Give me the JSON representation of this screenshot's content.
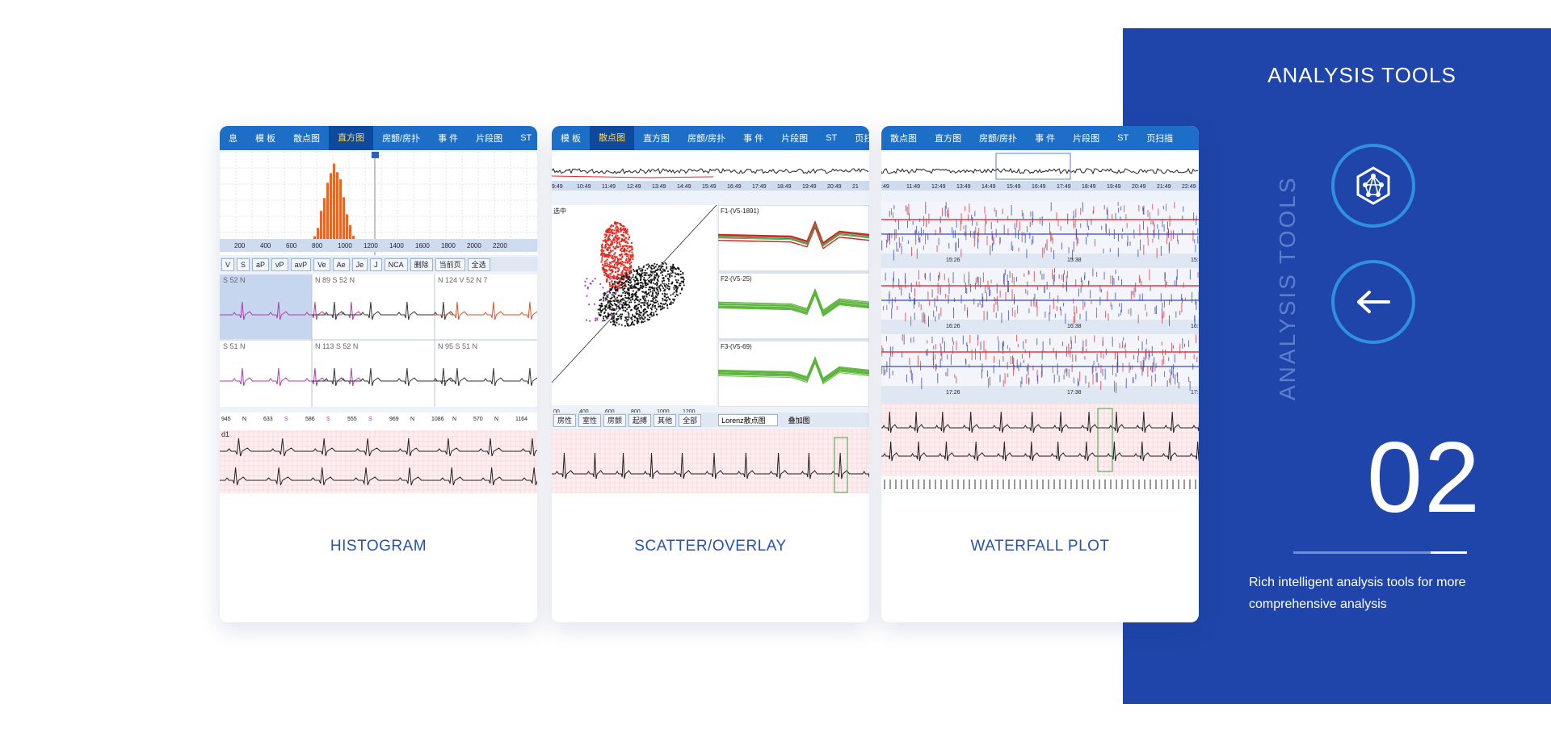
{
  "panel": {
    "title": "ANALYSIS TOOLS",
    "vertical_text": "ANALYSIS TOOLS",
    "number": "02",
    "description": "Rich intelligent analysis tools for more comprehensive analysis",
    "buttons": [
      {
        "icon": "network-hexagon-icon"
      },
      {
        "icon": "arrow-left-icon"
      }
    ]
  },
  "cards": [
    {
      "label": "HISTOGRAM",
      "tabs": [
        "息",
        "模 板",
        "散点图",
        "直方图",
        "房颤/房扑",
        "事 件",
        "片段图",
        "ST"
      ],
      "active_tab": 3,
      "hist_axis": [
        "200",
        "400",
        "600",
        "800",
        "1000",
        "1200",
        "1400",
        "1600",
        "1800",
        "2000",
        "2200"
      ],
      "filter_buttons": [
        "V",
        "S",
        "aP",
        "vP",
        "avP",
        "Ve",
        "Ae",
        "Je",
        "J",
        "NCA",
        "删除",
        "当前页",
        "全选"
      ],
      "beat_rows": [
        [
          "S 52 N",
          "N 89 S 52 N",
          "N 124 V 52 N 7"
        ],
        [
          "S 51 N",
          "N 113 S 52 N",
          "N 95 S 51 N"
        ]
      ],
      "lead": "d1",
      "rr_labels": [
        "945",
        "N",
        "633",
        "S",
        "586",
        "S",
        "555",
        "S",
        "969",
        "N",
        "1086",
        "N",
        "570",
        "N",
        "1164"
      ]
    },
    {
      "label": "SCATTER/OVERLAY",
      "tabs": [
        "模 板",
        "散点图",
        "直方图",
        "房颤/房扑",
        "事 件",
        "片段图",
        "ST",
        "页扫描"
      ],
      "active_tab": 1,
      "trend_times": [
        "9:49",
        "10:49",
        "11:49",
        "12:49",
        "13:49",
        "14:49",
        "15:49",
        "16:49",
        "17:49",
        "18:49",
        "19:49",
        "20:49",
        "21"
      ],
      "scatter_title": "选中",
      "scatter_axis": [
        "00",
        "400",
        "600",
        "800",
        "1000",
        "1200"
      ],
      "overlay_panels": [
        "F1-(V5-1891)",
        "F2-(V5-25)",
        "F3-(V5-69)"
      ],
      "filter_buttons": [
        "房性",
        "室性",
        "房颤",
        "起搏",
        "其他",
        "全部"
      ],
      "dropdown": "Lorenz散点图",
      "checkbox": "叠加图"
    },
    {
      "label": "WATERFALL PLOT",
      "tabs": [
        "散点图",
        "直方图",
        "房颤/房扑",
        "事 件",
        "片段图",
        "ST",
        "页扫描"
      ],
      "trend_times": [
        ":49",
        "11:49",
        "12:49",
        "13:49",
        "14:49",
        "15:49",
        "16:49",
        "17:49",
        "18:49",
        "19:49",
        "20:49",
        "21:49",
        "22:49"
      ],
      "strip_times": [
        [
          "15:26",
          "15:38",
          "15:5"
        ],
        [
          "16:26",
          "16:38",
          "16:5"
        ],
        [
          "17:26",
          "17:38",
          "17:5"
        ]
      ]
    }
  ]
}
